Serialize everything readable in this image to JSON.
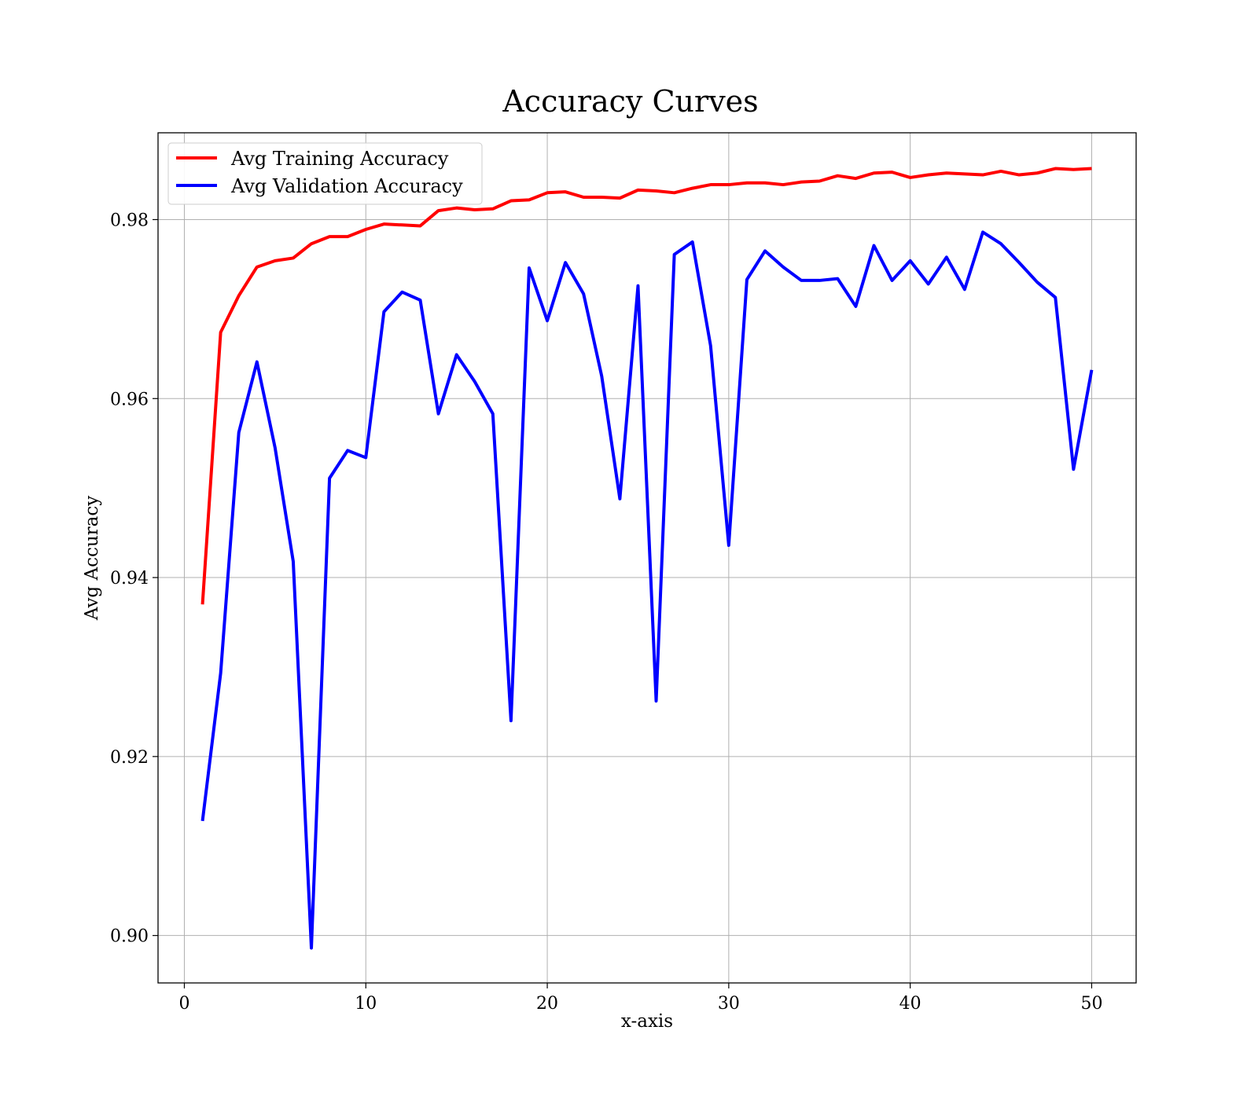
{
  "chart_data": {
    "type": "line",
    "title": "Accuracy Curves",
    "xlabel": "x-axis",
    "ylabel": "Avg Accuracy",
    "xlim": [
      -1.45,
      52.45
    ],
    "ylim": [
      0.8947,
      0.9897
    ],
    "xticks": [
      0,
      10,
      20,
      30,
      40,
      50
    ],
    "xtick_labels": [
      "0",
      "10",
      "20",
      "30",
      "40",
      "50"
    ],
    "yticks": [
      0.9,
      0.92,
      0.94,
      0.96,
      0.98
    ],
    "ytick_labels": [
      "0.90",
      "0.92",
      "0.94",
      "0.96",
      "0.98"
    ],
    "grid": true,
    "legend_position": "top-left",
    "x": [
      1,
      2,
      3,
      4,
      5,
      6,
      7,
      8,
      9,
      10,
      11,
      12,
      13,
      14,
      15,
      16,
      17,
      18,
      19,
      20,
      21,
      22,
      23,
      24,
      25,
      26,
      27,
      28,
      29,
      30,
      31,
      32,
      33,
      34,
      35,
      36,
      37,
      38,
      39,
      40,
      41,
      42,
      43,
      44,
      45,
      46,
      47,
      48,
      49,
      50
    ],
    "series": [
      {
        "name": "Avg Training Accuracy",
        "color": "#ff0000",
        "values": [
          0.937,
          0.9674,
          0.9715,
          0.9747,
          0.9754,
          0.9757,
          0.9773,
          0.9781,
          0.9781,
          0.9789,
          0.9795,
          0.9794,
          0.9793,
          0.981,
          0.9813,
          0.9811,
          0.9812,
          0.9821,
          0.9822,
          0.983,
          0.9831,
          0.9825,
          0.9825,
          0.9824,
          0.9833,
          0.9832,
          0.983,
          0.9835,
          0.9839,
          0.9839,
          0.9841,
          0.9841,
          0.9839,
          0.9842,
          0.9843,
          0.9849,
          0.9846,
          0.9852,
          0.9853,
          0.9847,
          0.985,
          0.9852,
          0.9851,
          0.985,
          0.9854,
          0.985,
          0.9852,
          0.9857,
          0.9856,
          0.9857
        ]
      },
      {
        "name": "Avg Validation Accuracy",
        "color": "#0000ff",
        "values": [
          0.9128,
          0.9293,
          0.9562,
          0.9641,
          0.9545,
          0.9418,
          0.8986,
          0.9511,
          0.9542,
          0.9534,
          0.9697,
          0.9719,
          0.971,
          0.9583,
          0.9649,
          0.9619,
          0.9583,
          0.924,
          0.9746,
          0.9687,
          0.9752,
          0.9717,
          0.9625,
          0.9488,
          0.9726,
          0.9262,
          0.9761,
          0.9775,
          0.9659,
          0.9436,
          0.9733,
          0.9765,
          0.9747,
          0.9732,
          0.9732,
          0.9734,
          0.9703,
          0.9771,
          0.9732,
          0.9754,
          0.9728,
          0.9758,
          0.9722,
          0.9786,
          0.9773,
          0.9752,
          0.973,
          0.9713,
          0.9521,
          0.9632
        ]
      }
    ]
  }
}
